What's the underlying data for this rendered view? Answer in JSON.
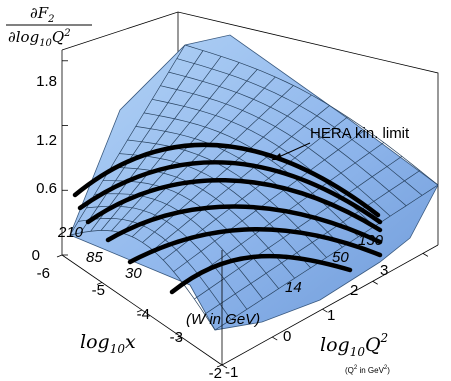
{
  "chart_data": {
    "type": "surface3d",
    "zlabel": {
      "numerator": "∂F",
      "num_sub": "2",
      "denominator": "∂log",
      "den_sub": "10",
      "den_var": "Q",
      "den_sup": "2"
    },
    "xlabel": {
      "prefix": "log",
      "sub": "10",
      "var": "x"
    },
    "ylabel": {
      "prefix": "log",
      "sub": "10",
      "var": "Q",
      "sup": "2"
    },
    "ylabel_note": {
      "text": "(Q",
      "sup": "2",
      "rest": " in GeV",
      "sup2": "2",
      "end": ")"
    },
    "x_ticks": [
      "-6",
      "-5",
      "-4",
      "-3",
      "-2"
    ],
    "y_ticks": [
      "-1",
      "0",
      "1",
      "2",
      "3"
    ],
    "z_ticks": [
      "0",
      "0.6",
      "1.2",
      "1.8"
    ],
    "xlim": [
      -6,
      -2
    ],
    "ylim": [
      -1,
      3.3
    ],
    "zlim": [
      0,
      1.9
    ],
    "annotation": "HERA kin. limit",
    "w_label": "(W in GeV)",
    "w_values": [
      "14",
      "30",
      "50",
      "85",
      "130",
      "210"
    ],
    "limit_curve_W_GeV": [
      14,
      30,
      50,
      85,
      130,
      210
    ],
    "colors": {
      "surface_light": "#c2dcf8",
      "surface_dark": "#5a86cb",
      "mesh": "#28425f",
      "curves": "#000000"
    }
  }
}
